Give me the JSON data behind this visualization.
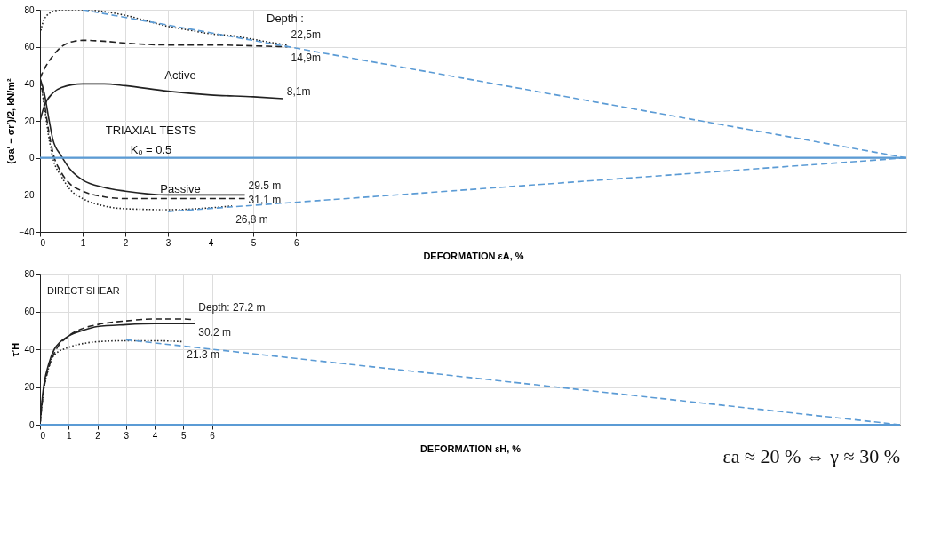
{
  "chart_data": [
    {
      "type": "line",
      "xlabel": "DEFORMATION εA, %",
      "ylabel": "(σa′ − σr′)/2, kN/m²",
      "xlim": [
        0,
        20.3
      ],
      "xticks": [
        0,
        1,
        2,
        3,
        4,
        5,
        6
      ],
      "ylim": [
        -40,
        80
      ],
      "yticks": [
        -40,
        -20,
        0,
        20,
        40,
        60,
        80
      ],
      "grid": true,
      "legend": false,
      "annotations": [
        "Depth :",
        "Active",
        "TRIAXIAL TESTS",
        "Kₒ = 0.5",
        "Passive"
      ],
      "ref_lines": [
        {
          "axis": "y",
          "value": 0,
          "color": "#5b9bd5",
          "line_style": "solid"
        }
      ],
      "series": [
        {
          "name": "22,5m",
          "color": "#222222",
          "line_style": "dotted",
          "x": [
            0,
            0.1,
            0.3,
            0.5,
            1,
            1.5,
            2,
            2.5,
            3,
            3.5,
            4,
            4.5,
            5,
            5.5,
            5.8
          ],
          "values": [
            67,
            75,
            79,
            80,
            80,
            79,
            77,
            74,
            71,
            69,
            67,
            66,
            64,
            62,
            61
          ]
        },
        {
          "name": "14,9m",
          "color": "#222222",
          "line_style": "dashed",
          "x": [
            0,
            0.1,
            0.3,
            0.5,
            0.8,
            1,
            1.5,
            2,
            3,
            4,
            5,
            5.8
          ],
          "values": [
            43,
            48,
            55,
            60,
            63,
            63.5,
            63,
            62,
            61,
            61,
            60.5,
            60
          ]
        },
        {
          "name": "8,1m",
          "color": "#222222",
          "line_style": "solid",
          "x": [
            0,
            0.1,
            0.3,
            0.5,
            1,
            1.5,
            2,
            3,
            4,
            5,
            5.7
          ],
          "values": [
            20,
            28,
            35,
            38,
            40,
            40,
            39,
            36,
            34,
            33,
            32
          ]
        },
        {
          "name": "29.5 m",
          "color": "#222222",
          "line_style": "solid",
          "x": [
            0,
            0.1,
            0.2,
            0.3,
            0.5,
            0.7,
            1,
            1.5,
            2,
            3,
            4,
            4.8
          ],
          "values": [
            43,
            35,
            22,
            10,
            1,
            -6,
            -12,
            -16,
            -18,
            -20,
            -20,
            -20
          ]
        },
        {
          "name": "31,1 m",
          "color": "#222222",
          "line_style": "dashed",
          "x": [
            0,
            0.1,
            0.2,
            0.3,
            0.5,
            0.7,
            1,
            1.5,
            2,
            3,
            4,
            4.8
          ],
          "values": [
            43,
            30,
            15,
            3,
            -8,
            -14,
            -18,
            -21,
            -22,
            -22,
            -22,
            -22
          ]
        },
        {
          "name": "26,8 m",
          "color": "#222222",
          "line_style": "dotted",
          "x": [
            0,
            0.1,
            0.2,
            0.3,
            0.5,
            0.7,
            1,
            1.5,
            2,
            3,
            4,
            4.5
          ],
          "values": [
            43,
            28,
            12,
            0,
            -10,
            -17,
            -22,
            -26,
            -27.5,
            -28,
            -27,
            -26
          ]
        },
        {
          "color": "#5b9bd5",
          "line_style": "dashed",
          "x": [
            1,
            20.3
          ],
          "values": [
            80,
            0
          ]
        },
        {
          "color": "#5b9bd5",
          "line_style": "dashed",
          "x": [
            3,
            20.3
          ],
          "values": [
            -29,
            0
          ]
        }
      ]
    },
    {
      "type": "line",
      "xlabel": "DEFORMATION εH, %",
      "ylabel": "τ′H",
      "xlim": [
        0,
        30
      ],
      "xticks": [
        0,
        1,
        2,
        3,
        4,
        5,
        6
      ],
      "ylim": [
        0,
        80
      ],
      "yticks": [
        0,
        20,
        40,
        60,
        80
      ],
      "grid": true,
      "legend": false,
      "annotations": [
        "DIRECT SHEAR",
        "εa ≈ 20 % ⇔ γ ≈ 30 %"
      ],
      "ref_lines": [
        {
          "axis": "y",
          "value": 0,
          "color": "#5b9bd5",
          "line_style": "solid"
        }
      ],
      "series": [
        {
          "name": "Depth: 27.2 m",
          "color": "#222222",
          "line_style": "dashed",
          "x": [
            0,
            0.1,
            0.3,
            0.5,
            1,
            1.5,
            2,
            3,
            4,
            5,
            5.4
          ],
          "values": [
            0,
            15,
            30,
            38,
            47,
            51,
            53,
            55,
            56,
            56,
            55.5
          ]
        },
        {
          "name": "30.2 m",
          "color": "#222222",
          "line_style": "solid",
          "x": [
            0,
            0.1,
            0.3,
            0.5,
            1,
            1.5,
            2,
            3,
            4,
            5.4
          ],
          "values": [
            0,
            17,
            32,
            40,
            47,
            50,
            52,
            53,
            53.5,
            53.5
          ]
        },
        {
          "name": "21.3 m",
          "color": "#222222",
          "line_style": "dotted",
          "x": [
            0,
            0.1,
            0.3,
            0.5,
            1,
            1.5,
            2,
            3,
            4,
            5
          ],
          "values": [
            0,
            15,
            30,
            37,
            41,
            43,
            44,
            44.5,
            44.5,
            44
          ]
        },
        {
          "color": "#5b9bd5",
          "line_style": "dashed",
          "x": [
            3,
            30
          ],
          "values": [
            45,
            0
          ]
        }
      ]
    }
  ]
}
